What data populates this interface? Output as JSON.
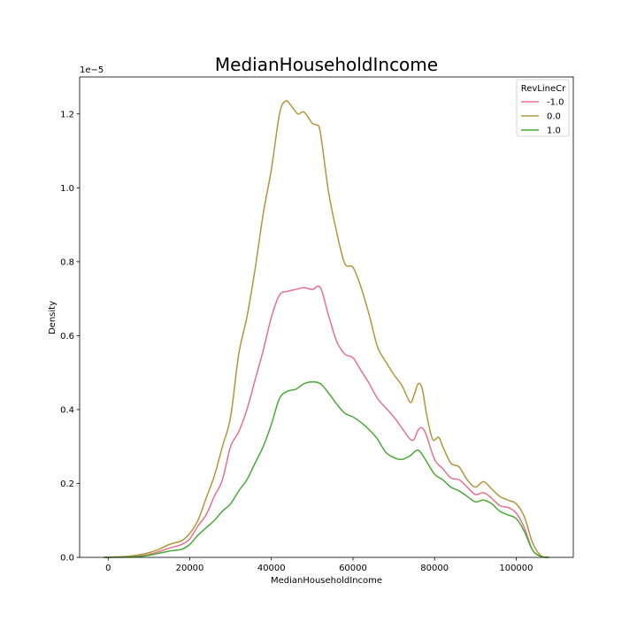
{
  "chart_data": {
    "type": "line",
    "title": "MedianHouseholdIncome",
    "xlabel": "MedianHouseholdIncome",
    "ylabel": "Density",
    "y_offset_label": "1e−5",
    "xlim": [
      -7000,
      114000
    ],
    "ylim": [
      0,
      1.3
    ],
    "x_ticks": [
      0,
      20000,
      40000,
      60000,
      80000,
      100000
    ],
    "x_tick_labels": [
      "0",
      "20000",
      "40000",
      "60000",
      "80000",
      "100000"
    ],
    "y_ticks": [
      0.0,
      0.2,
      0.4,
      0.6,
      0.8,
      1.0,
      1.2
    ],
    "y_tick_labels": [
      "0.0",
      "0.2",
      "0.4",
      "0.6",
      "0.8",
      "1.0",
      "1.2"
    ],
    "grid": false,
    "legend": {
      "title": "RevLineCr",
      "placement": "top-right",
      "entries": [
        "-1.0",
        "0.0",
        "1.0"
      ]
    },
    "series": [
      {
        "name": "-1.0",
        "color": "#e8718d",
        "x": [
          -1000,
          5000,
          9000,
          12000,
          15000,
          18000,
          20000,
          22000,
          24000,
          26000,
          28000,
          30000,
          32000,
          34000,
          36000,
          38000,
          40000,
          42000,
          44000,
          46000,
          48000,
          50000,
          52000,
          54000,
          56000,
          58000,
          60000,
          62000,
          64000,
          66000,
          68000,
          70000,
          72000,
          74000,
          75000,
          76000,
          77000,
          78000,
          80000,
          82000,
          84000,
          86000,
          88000,
          90000,
          92000,
          94000,
          96000,
          98000,
          100000,
          102000,
          104000,
          106000,
          108000
        ],
        "y": [
          0.0,
          0.002,
          0.006,
          0.014,
          0.025,
          0.035,
          0.05,
          0.085,
          0.115,
          0.165,
          0.21,
          0.3,
          0.34,
          0.4,
          0.48,
          0.56,
          0.65,
          0.71,
          0.72,
          0.725,
          0.73,
          0.725,
          0.73,
          0.655,
          0.585,
          0.55,
          0.54,
          0.505,
          0.47,
          0.43,
          0.405,
          0.38,
          0.35,
          0.32,
          0.32,
          0.345,
          0.35,
          0.33,
          0.265,
          0.24,
          0.215,
          0.21,
          0.19,
          0.17,
          0.175,
          0.16,
          0.14,
          0.135,
          0.12,
          0.08,
          0.02,
          0.003,
          0.0
        ]
      },
      {
        "name": "0.0",
        "color": "#b3963a",
        "x": [
          -1000,
          5000,
          9000,
          12000,
          15000,
          18000,
          20000,
          22000,
          24000,
          26000,
          28000,
          30000,
          32000,
          34000,
          36000,
          38000,
          40000,
          42000,
          43500,
          45000,
          46500,
          48000,
          50000,
          51000,
          52000,
          54000,
          56000,
          58000,
          60000,
          62000,
          64000,
          66000,
          68000,
          70000,
          72000,
          74000,
          75000,
          76000,
          77000,
          78000,
          79500,
          81000,
          82000,
          84000,
          86000,
          88000,
          90000,
          92000,
          94000,
          96000,
          98000,
          100000,
          102000,
          104000,
          106000,
          108000
        ],
        "y": [
          0.0,
          0.003,
          0.01,
          0.02,
          0.035,
          0.045,
          0.065,
          0.1,
          0.16,
          0.22,
          0.3,
          0.38,
          0.55,
          0.65,
          0.78,
          0.93,
          1.05,
          1.2,
          1.235,
          1.22,
          1.2,
          1.205,
          1.175,
          1.17,
          1.15,
          0.99,
          0.88,
          0.795,
          0.785,
          0.73,
          0.655,
          0.57,
          0.53,
          0.495,
          0.465,
          0.42,
          0.44,
          0.47,
          0.455,
          0.39,
          0.32,
          0.325,
          0.3,
          0.255,
          0.245,
          0.21,
          0.19,
          0.205,
          0.185,
          0.165,
          0.155,
          0.145,
          0.11,
          0.04,
          0.005,
          0.0
        ]
      },
      {
        "name": "1.0",
        "color": "#4aaa36",
        "x": [
          -1000,
          5000,
          9000,
          12000,
          15000,
          18000,
          20000,
          22000,
          24000,
          26000,
          28000,
          30000,
          32000,
          34000,
          36000,
          38000,
          40000,
          42000,
          44000,
          46000,
          48000,
          50000,
          52000,
          54000,
          56000,
          58000,
          60000,
          62000,
          64000,
          66000,
          68000,
          70000,
          72000,
          74000,
          76000,
          78000,
          80000,
          82000,
          84000,
          86000,
          88000,
          90000,
          92000,
          94000,
          96000,
          98000,
          100000,
          102000,
          104000,
          106000,
          108000
        ],
        "y": [
          0.0,
          0.001,
          0.004,
          0.01,
          0.017,
          0.022,
          0.035,
          0.06,
          0.08,
          0.1,
          0.125,
          0.145,
          0.18,
          0.21,
          0.255,
          0.3,
          0.36,
          0.43,
          0.45,
          0.455,
          0.47,
          0.475,
          0.47,
          0.445,
          0.415,
          0.39,
          0.38,
          0.365,
          0.345,
          0.32,
          0.285,
          0.27,
          0.265,
          0.275,
          0.29,
          0.26,
          0.225,
          0.21,
          0.19,
          0.18,
          0.165,
          0.15,
          0.155,
          0.145,
          0.125,
          0.115,
          0.105,
          0.07,
          0.02,
          0.003,
          0.0
        ]
      }
    ]
  }
}
